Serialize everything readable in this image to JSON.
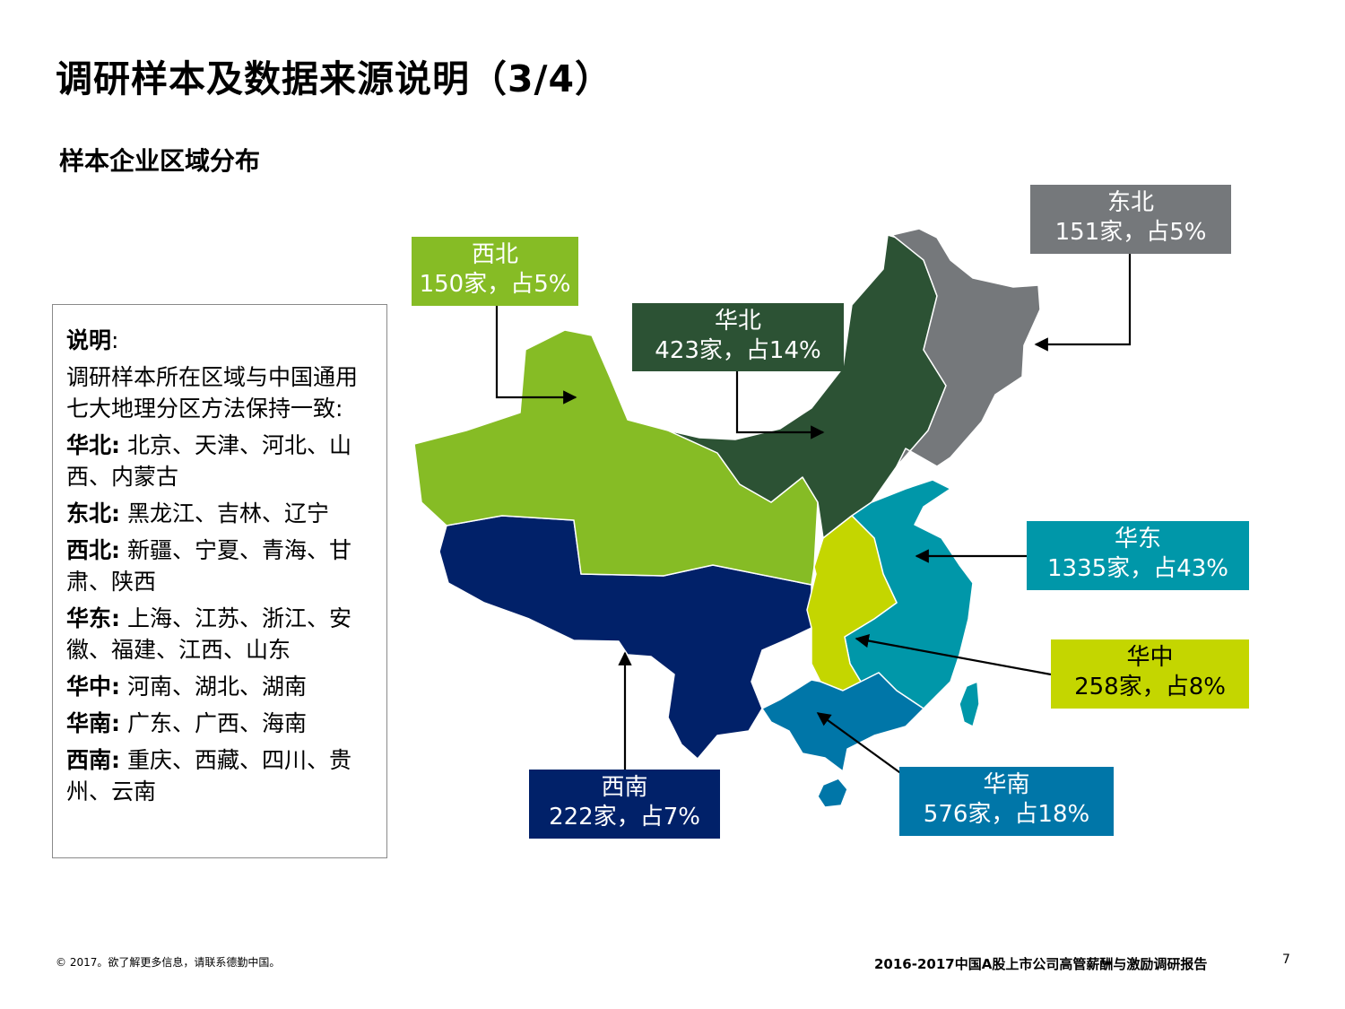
{
  "title": "调研样本及数据来源说明（3/4）",
  "subtitle": "样本企业区域分布",
  "legend": {
    "heading": "说明",
    "colon": ":",
    "intro": "调研样本所在区域与中国通用七大地理分区方法保持一致:",
    "entries": [
      {
        "region": "华北:",
        "provinces": "北京、天津、河北、山西、内蒙古"
      },
      {
        "region": "东北:",
        "provinces": "黑龙江、吉林、辽宁"
      },
      {
        "region": "西北:",
        "provinces": "新疆、宁夏、青海、甘肃、陕西"
      },
      {
        "region": "华东:",
        "provinces": "上海、江苏、浙江、安徽、福建、江西、山东"
      },
      {
        "region": "华中:",
        "provinces": "河南、湖北、湖南"
      },
      {
        "region": "华南:",
        "provinces": "广东、广西、海南"
      },
      {
        "region": "西南:",
        "provinces": "重庆、西藏、四川、贵州、云南"
      }
    ]
  },
  "callouts": {
    "northeast": {
      "name": "东北",
      "stat": "151家，占5%",
      "color": "#75787b"
    },
    "northwest": {
      "name": "西北",
      "stat": "150家，占5%",
      "color": "#86bc25"
    },
    "north": {
      "name": "华北",
      "stat": "423家，占14%",
      "color": "#2c5234"
    },
    "east": {
      "name": "华东",
      "stat": "1335家，占43%",
      "color": "#0097a9"
    },
    "central": {
      "name": "华中",
      "stat": "258家，占8%",
      "color": "#c4d600"
    },
    "southwest": {
      "name": "西南",
      "stat": "222家，占7%",
      "color": "#012169"
    },
    "south": {
      "name": "华南",
      "stat": "576家，占18%",
      "color": "#0076a8"
    }
  },
  "footer": {
    "copyright": "© 2017。欲了解更多信息，请联系德勤中国。",
    "report": "2016-2017中国A股上市公司高管薪酬与激励调研报告",
    "page": "7"
  }
}
